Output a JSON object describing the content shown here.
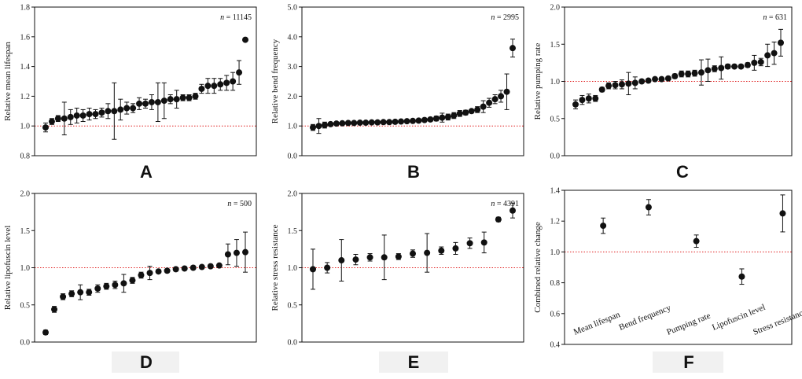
{
  "chart_data": [
    {
      "id": "A",
      "type": "scatter",
      "label": "A",
      "ylabel": "Relative mean lifespan",
      "n_label": "n = 11145",
      "ylim": [
        0.8,
        1.8
      ],
      "yticks": [
        "0.8",
        "1.0",
        "1.2",
        "1.4",
        "1.6",
        "1.8"
      ],
      "reference": 1.0,
      "points": [
        {
          "y": 0.99,
          "err": 0.03
        },
        {
          "y": 1.03,
          "err": 0.02
        },
        {
          "y": 1.05,
          "err": 0.02
        },
        {
          "y": 1.05,
          "err": 0.11
        },
        {
          "y": 1.06,
          "err": 0.05
        },
        {
          "y": 1.07,
          "err": 0.05
        },
        {
          "y": 1.07,
          "err": 0.04
        },
        {
          "y": 1.08,
          "err": 0.04
        },
        {
          "y": 1.08,
          "err": 0.03
        },
        {
          "y": 1.09,
          "err": 0.03
        },
        {
          "y": 1.1,
          "err": 0.05
        },
        {
          "y": 1.1,
          "err": 0.19
        },
        {
          "y": 1.11,
          "err": 0.07
        },
        {
          "y": 1.12,
          "err": 0.04
        },
        {
          "y": 1.12,
          "err": 0.03
        },
        {
          "y": 1.15,
          "err": 0.04
        },
        {
          "y": 1.15,
          "err": 0.03
        },
        {
          "y": 1.16,
          "err": 0.05
        },
        {
          "y": 1.16,
          "err": 0.13
        },
        {
          "y": 1.17,
          "err": 0.12
        },
        {
          "y": 1.18,
          "err": 0.03
        },
        {
          "y": 1.18,
          "err": 0.06
        },
        {
          "y": 1.19,
          "err": 0.02
        },
        {
          "y": 1.19,
          "err": 0.02
        },
        {
          "y": 1.2,
          "err": 0.02
        },
        {
          "y": 1.25,
          "err": 0.03
        },
        {
          "y": 1.27,
          "err": 0.05
        },
        {
          "y": 1.27,
          "err": 0.05
        },
        {
          "y": 1.28,
          "err": 0.04
        },
        {
          "y": 1.29,
          "err": 0.05
        },
        {
          "y": 1.3,
          "err": 0.06
        },
        {
          "y": 1.36,
          "err": 0.08
        },
        {
          "y": 1.58,
          "err": 0.01
        }
      ]
    },
    {
      "id": "B",
      "type": "scatter",
      "label": "B",
      "ylabel": "Relative bend frequency",
      "n_label": "n = 2995",
      "ylim": [
        0.0,
        5.0
      ],
      "yticks": [
        "0.0",
        "1.0",
        "2.0",
        "3.0",
        "4.0",
        "5.0"
      ],
      "reference": 1.0,
      "points": [
        {
          "y": 0.95,
          "err": 0.1
        },
        {
          "y": 1.0,
          "err": 0.25
        },
        {
          "y": 1.03,
          "err": 0.1
        },
        {
          "y": 1.06,
          "err": 0.05
        },
        {
          "y": 1.08,
          "err": 0.04
        },
        {
          "y": 1.09,
          "err": 0.03
        },
        {
          "y": 1.1,
          "err": 0.03
        },
        {
          "y": 1.1,
          "err": 0.03
        },
        {
          "y": 1.11,
          "err": 0.03
        },
        {
          "y": 1.11,
          "err": 0.03
        },
        {
          "y": 1.12,
          "err": 0.03
        },
        {
          "y": 1.12,
          "err": 0.03
        },
        {
          "y": 1.13,
          "err": 0.03
        },
        {
          "y": 1.13,
          "err": 0.03
        },
        {
          "y": 1.14,
          "err": 0.03
        },
        {
          "y": 1.15,
          "err": 0.03
        },
        {
          "y": 1.16,
          "err": 0.03
        },
        {
          "y": 1.17,
          "err": 0.04
        },
        {
          "y": 1.18,
          "err": 0.05
        },
        {
          "y": 1.2,
          "err": 0.05
        },
        {
          "y": 1.22,
          "err": 0.06
        },
        {
          "y": 1.25,
          "err": 0.08
        },
        {
          "y": 1.28,
          "err": 0.15
        },
        {
          "y": 1.3,
          "err": 0.1
        },
        {
          "y": 1.35,
          "err": 0.1
        },
        {
          "y": 1.42,
          "err": 0.1
        },
        {
          "y": 1.45,
          "err": 0.08
        },
        {
          "y": 1.5,
          "err": 0.05
        },
        {
          "y": 1.55,
          "err": 0.1
        },
        {
          "y": 1.65,
          "err": 0.2
        },
        {
          "y": 1.78,
          "err": 0.15
        },
        {
          "y": 1.9,
          "err": 0.15
        },
        {
          "y": 2.0,
          "err": 0.2
        },
        {
          "y": 2.15,
          "err": 0.6
        },
        {
          "y": 3.62,
          "err": 0.3
        }
      ]
    },
    {
      "id": "C",
      "type": "scatter",
      "label": "C",
      "ylabel": "Relative pumping rate",
      "n_label": "n = 631",
      "ylim": [
        0.0,
        2.0
      ],
      "yticks": [
        "0.0",
        "0.5",
        "1.0",
        "1.5",
        "2.0"
      ],
      "reference": 1.0,
      "points": [
        {
          "y": 0.69,
          "err": 0.06
        },
        {
          "y": 0.75,
          "err": 0.06
        },
        {
          "y": 0.77,
          "err": 0.06
        },
        {
          "y": 0.77,
          "err": 0.04
        },
        {
          "y": 0.89,
          "err": 0.03
        },
        {
          "y": 0.94,
          "err": 0.04
        },
        {
          "y": 0.95,
          "err": 0.05
        },
        {
          "y": 0.96,
          "err": 0.06
        },
        {
          "y": 0.97,
          "err": 0.15
        },
        {
          "y": 0.98,
          "err": 0.08
        },
        {
          "y": 1.0,
          "err": 0.02
        },
        {
          "y": 1.01,
          "err": 0.02
        },
        {
          "y": 1.03,
          "err": 0.02
        },
        {
          "y": 1.03,
          "err": 0.02
        },
        {
          "y": 1.04,
          "err": 0.02
        },
        {
          "y": 1.07,
          "err": 0.03
        },
        {
          "y": 1.1,
          "err": 0.04
        },
        {
          "y": 1.1,
          "err": 0.04
        },
        {
          "y": 1.11,
          "err": 0.04
        },
        {
          "y": 1.12,
          "err": 0.17
        },
        {
          "y": 1.15,
          "err": 0.15
        },
        {
          "y": 1.17,
          "err": 0.04
        },
        {
          "y": 1.18,
          "err": 0.15
        },
        {
          "y": 1.2,
          "err": 0.03
        },
        {
          "y": 1.2,
          "err": 0.02
        },
        {
          "y": 1.2,
          "err": 0.02
        },
        {
          "y": 1.22,
          "err": 0.03
        },
        {
          "y": 1.25,
          "err": 0.1
        },
        {
          "y": 1.26,
          "err": 0.05
        },
        {
          "y": 1.35,
          "err": 0.15
        },
        {
          "y": 1.38,
          "err": 0.15
        },
        {
          "y": 1.52,
          "err": 0.18
        }
      ]
    },
    {
      "id": "D",
      "type": "scatter",
      "label": "D",
      "ylabel": "Relative lipofuscin level",
      "n_label": "n = 500",
      "ylim": [
        0.0,
        2.0
      ],
      "yticks": [
        "0.0",
        "0.5",
        "1.0",
        "1.5",
        "2.0"
      ],
      "reference": 1.0,
      "points": [
        {
          "y": 0.13,
          "err": 0.03
        },
        {
          "y": 0.44,
          "err": 0.04
        },
        {
          "y": 0.61,
          "err": 0.04
        },
        {
          "y": 0.65,
          "err": 0.04
        },
        {
          "y": 0.67,
          "err": 0.1
        },
        {
          "y": 0.67,
          "err": 0.04
        },
        {
          "y": 0.72,
          "err": 0.05
        },
        {
          "y": 0.75,
          "err": 0.04
        },
        {
          "y": 0.77,
          "err": 0.05
        },
        {
          "y": 0.79,
          "err": 0.12
        },
        {
          "y": 0.83,
          "err": 0.04
        },
        {
          "y": 0.9,
          "err": 0.04
        },
        {
          "y": 0.93,
          "err": 0.09
        },
        {
          "y": 0.95,
          "err": 0.02
        },
        {
          "y": 0.96,
          "err": 0.02
        },
        {
          "y": 0.98,
          "err": 0.02
        },
        {
          "y": 0.99,
          "err": 0.02
        },
        {
          "y": 1.0,
          "err": 0.02
        },
        {
          "y": 1.01,
          "err": 0.02
        },
        {
          "y": 1.02,
          "err": 0.02
        },
        {
          "y": 1.03,
          "err": 0.02
        },
        {
          "y": 1.18,
          "err": 0.14
        },
        {
          "y": 1.2,
          "err": 0.18
        },
        {
          "y": 1.21,
          "err": 0.27
        }
      ]
    },
    {
      "id": "E",
      "type": "scatter",
      "label": "E",
      "ylabel": "Relative stress resistance",
      "n_label": "n = 4391",
      "ylim": [
        0.0,
        2.0
      ],
      "yticks": [
        "0.0",
        "0.5",
        "1.0",
        "1.5",
        "2.0"
      ],
      "reference": 1.0,
      "points": [
        {
          "y": 0.98,
          "err": 0.27
        },
        {
          "y": 1.0,
          "err": 0.07
        },
        {
          "y": 1.1,
          "err": 0.28
        },
        {
          "y": 1.11,
          "err": 0.07
        },
        {
          "y": 1.14,
          "err": 0.05
        },
        {
          "y": 1.14,
          "err": 0.3
        },
        {
          "y": 1.15,
          "err": 0.04
        },
        {
          "y": 1.19,
          "err": 0.05
        },
        {
          "y": 1.2,
          "err": 0.26
        },
        {
          "y": 1.23,
          "err": 0.05
        },
        {
          "y": 1.26,
          "err": 0.08
        },
        {
          "y": 1.33,
          "err": 0.07
        },
        {
          "y": 1.34,
          "err": 0.14
        },
        {
          "y": 1.65,
          "err": 0.03
        },
        {
          "y": 1.77,
          "err": 0.1
        }
      ]
    },
    {
      "id": "F",
      "type": "scatter",
      "label": "F",
      "ylabel": "Combined relative change",
      "n_label": "",
      "ylim": [
        0.4,
        1.4
      ],
      "yticks": [
        "0.4",
        "0.6",
        "0.8",
        "1.0",
        "1.2",
        "1.4"
      ],
      "reference": 1.0,
      "categories": [
        "Mean lifespan",
        "Bend frequency",
        "Pumping rate",
        "Lipofuscin level",
        "Stress resistance"
      ],
      "points": [
        {
          "y": 1.17,
          "err": 0.05
        },
        {
          "y": 1.29,
          "err": 0.05
        },
        {
          "y": 1.07,
          "err": 0.04
        },
        {
          "y": 0.84,
          "err": 0.05
        },
        {
          "y": 1.25,
          "err": 0.12
        }
      ]
    }
  ],
  "colors": {
    "point": "#111111",
    "reference": "#e02020",
    "axis": "#111111",
    "label_box": "#f1f1f1"
  }
}
